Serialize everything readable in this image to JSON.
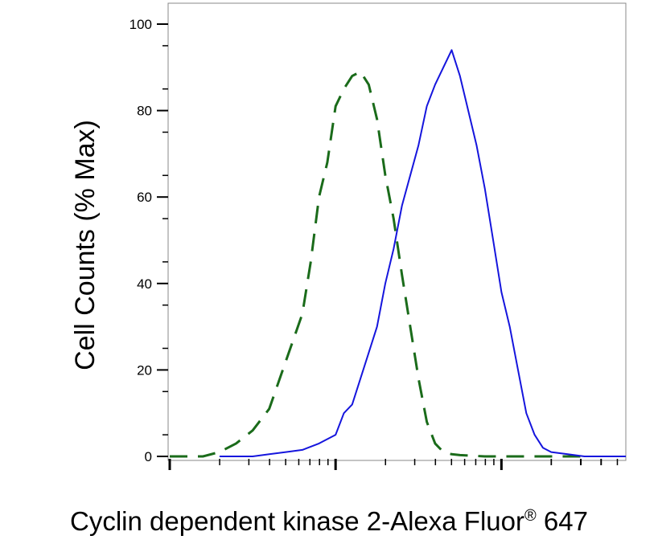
{
  "chart_data": {
    "type": "line",
    "title": "",
    "ylabel": "Cell Counts (% Max)",
    "xlabel_main": "Cyclin dependent kinase 2-Alexa Fluor",
    "xlabel_mark": "®",
    "xlabel_tail": " 647",
    "xscale": "log",
    "xlim": [
      0,
      2.75
    ],
    "ylim": [
      0,
      105
    ],
    "yticks": [
      0,
      20,
      40,
      60,
      80,
      100
    ],
    "ytick_labels": [
      "0",
      "20",
      "40",
      "60",
      "80",
      "100"
    ],
    "grid": false,
    "legend": "none",
    "series": [
      {
        "color": "#1a6b1a",
        "dash": "dashed",
        "x": [
          0.0,
          0.1,
          0.2,
          0.3,
          0.4,
          0.5,
          0.6,
          0.7,
          0.8,
          0.85,
          0.9,
          0.95,
          1.0,
          1.05,
          1.1,
          1.15,
          1.2,
          1.25,
          1.3,
          1.35,
          1.4,
          1.45,
          1.5,
          1.55,
          1.6,
          1.65,
          1.7,
          1.75,
          1.8,
          1.9,
          2.0,
          2.1,
          2.2,
          2.3,
          2.4,
          2.5
        ],
        "y": [
          0,
          0,
          0,
          1,
          3,
          6,
          11,
          22,
          33,
          45,
          60,
          68,
          81,
          85,
          88,
          89,
          86,
          78,
          65,
          55,
          42,
          30,
          18,
          8,
          3,
          1,
          0.5,
          0.3,
          0.2,
          0,
          0,
          0,
          0,
          0,
          0,
          0
        ]
      },
      {
        "color": "#1515dd",
        "dash": "solid",
        "x": [
          0.3,
          0.4,
          0.5,
          0.6,
          0.7,
          0.8,
          0.9,
          1.0,
          1.05,
          1.1,
          1.15,
          1.2,
          1.25,
          1.3,
          1.35,
          1.4,
          1.45,
          1.5,
          1.55,
          1.6,
          1.65,
          1.7,
          1.75,
          1.8,
          1.85,
          1.9,
          1.95,
          2.0,
          2.05,
          2.1,
          2.15,
          2.2,
          2.25,
          2.3,
          2.4,
          2.5,
          2.6,
          2.75
        ],
        "y": [
          0,
          0,
          0,
          0.5,
          1,
          1.5,
          3,
          5,
          10,
          12,
          18,
          24,
          30,
          40,
          48,
          58,
          65,
          72,
          81,
          86,
          90,
          94,
          88,
          80,
          72,
          62,
          50,
          38,
          30,
          20,
          10,
          5,
          2,
          1,
          0.5,
          0,
          0,
          0
        ]
      }
    ]
  }
}
